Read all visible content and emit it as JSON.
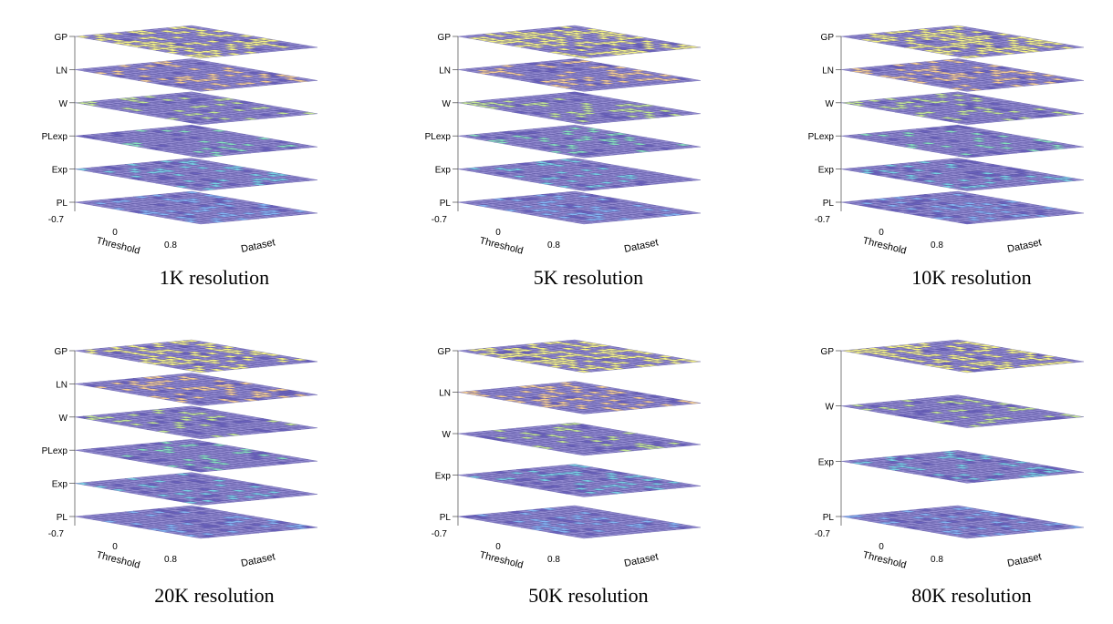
{
  "figure": {
    "panels": [
      {
        "caption": "1K resolution",
        "layers": [
          "GP",
          "LN",
          "W",
          "PLexp",
          "Exp",
          "PL"
        ]
      },
      {
        "caption": "5K resolution",
        "layers": [
          "GP",
          "LN",
          "W",
          "PLexp",
          "Exp",
          "PL"
        ]
      },
      {
        "caption": "10K resolution",
        "layers": [
          "GP",
          "LN",
          "W",
          "PLexp",
          "Exp",
          "PL"
        ]
      },
      {
        "caption": "20K resolution",
        "layers": [
          "GP",
          "LN",
          "W",
          "PLexp",
          "Exp",
          "PL"
        ]
      },
      {
        "caption": "50K resolution",
        "layers": [
          "GP",
          "LN",
          "W",
          "Exp",
          "PL"
        ]
      },
      {
        "caption": "80K resolution",
        "layers": [
          "GP",
          "W",
          "Exp",
          "PL"
        ]
      }
    ]
  },
  "chart_data": [
    {
      "type": "heatmap",
      "title": "1K resolution",
      "xlabel": "Threshold",
      "ylabel": "Dataset",
      "xticks": [
        "-0.7",
        "0",
        "0.8"
      ],
      "zticks": [
        "PL",
        "Exp",
        "PLexp",
        "W",
        "LN",
        "GP"
      ]
    },
    {
      "type": "heatmap",
      "title": "5K resolution",
      "xlabel": "Threshold",
      "ylabel": "Dataset",
      "xticks": [
        "-0.7",
        "0",
        "0.8"
      ],
      "zticks": [
        "PL",
        "Exp",
        "PLexp",
        "W",
        "LN",
        "GP"
      ]
    },
    {
      "type": "heatmap",
      "title": "10K resolution",
      "xlabel": "Threshold",
      "ylabel": "Dataset",
      "xticks": [
        "-0.7",
        "0",
        "0.8"
      ],
      "zticks": [
        "PL",
        "Exp",
        "PLexp",
        "W",
        "LN",
        "GP"
      ]
    },
    {
      "type": "heatmap",
      "title": "20K resolution",
      "xlabel": "Threshold",
      "ylabel": "Dataset",
      "xticks": [
        "-0.7",
        "0",
        "0.8"
      ],
      "zticks": [
        "PL",
        "Exp",
        "PLexp",
        "W",
        "LN",
        "GP"
      ]
    },
    {
      "type": "heatmap",
      "title": "50K resolution",
      "xlabel": "Threshold",
      "ylabel": "Dataset",
      "xticks": [
        "-0.7",
        "0",
        "0.8"
      ],
      "zticks": [
        "PL",
        "Exp",
        "W",
        "LN",
        "GP"
      ]
    },
    {
      "type": "heatmap",
      "title": "80K resolution",
      "xlabel": "Threshold",
      "ylabel": "Dataset",
      "xticks": [
        "-0.7",
        "0",
        "0.8"
      ],
      "zticks": [
        "PL",
        "Exp",
        "W",
        "GP"
      ]
    }
  ],
  "colors": {
    "base": "#7b72c6",
    "grid": "#5c56a2",
    "GP": "#f3f06a",
    "LN": "#f2c27a",
    "W": "#b7df7c",
    "PLexp": "#6fd8b0",
    "Exp": "#5bc5dc",
    "PL": "#6aa5ee",
    "dark": "#4a3fb0"
  }
}
